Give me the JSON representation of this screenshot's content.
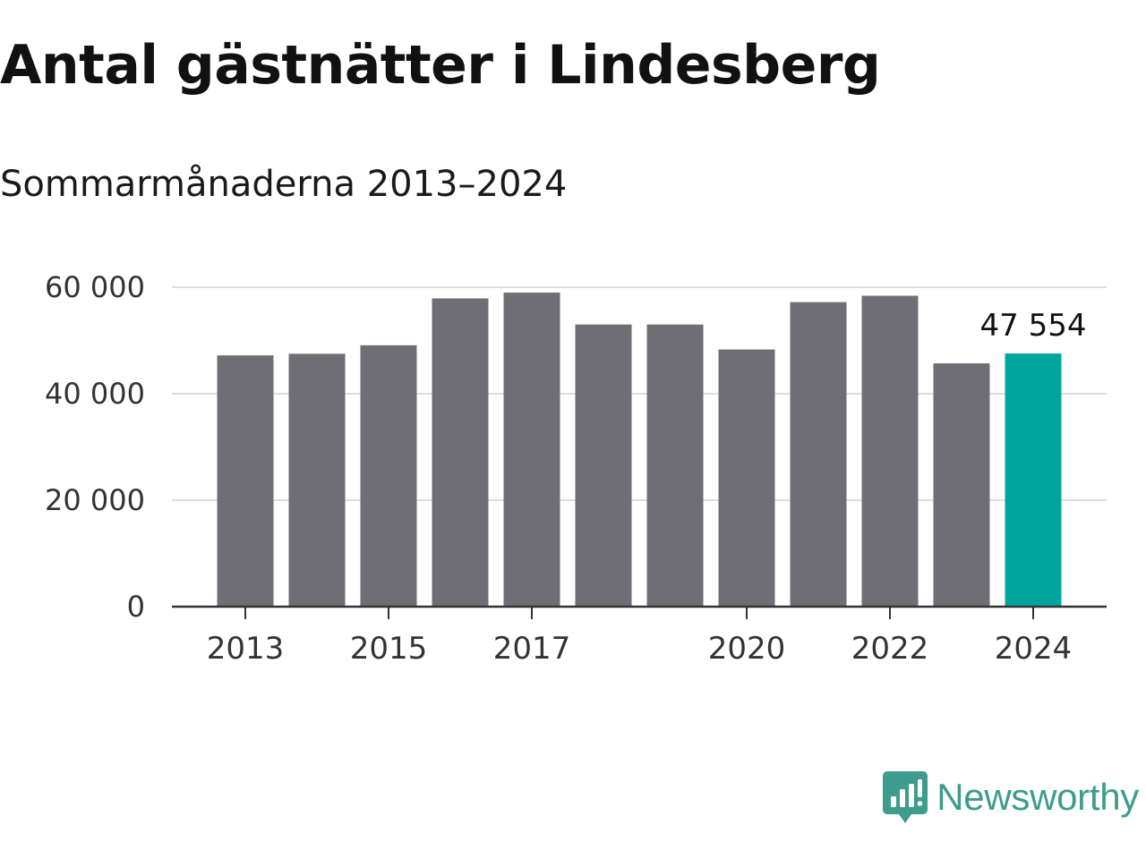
{
  "header": {
    "title": "Antal gästnätter i Lindesberg",
    "subtitle": "Sommarmånaderna 2013–2024"
  },
  "brand": {
    "name": "Newsworthy",
    "logo_icon": "bar-chart-speech-bubble-icon",
    "color": "#3d9c8c"
  },
  "colors": {
    "bar": "#6f6e75",
    "highlight": "#00a69c",
    "grid": "#dddddd",
    "axis": "#333333"
  },
  "chart_data": {
    "type": "bar",
    "categories": [
      "2013",
      "2014",
      "2015",
      "2016",
      "2017",
      "2018",
      "2019",
      "2020",
      "2021",
      "2022",
      "2023",
      "2024"
    ],
    "values": [
      47200,
      47500,
      49100,
      57900,
      59000,
      53000,
      53000,
      48300,
      57200,
      58400,
      45700,
      47554
    ],
    "highlight_index": 11,
    "data_labels": [
      {
        "index": 11,
        "text": "47 554"
      }
    ],
    "x_tick_labels": [
      "2013",
      "2015",
      "2017",
      "2020",
      "2022",
      "2024"
    ],
    "y_ticks": [
      0,
      20000,
      40000,
      60000
    ],
    "y_tick_labels": [
      "0",
      "20 000",
      "40 000",
      "60 000"
    ],
    "ylim": [
      0,
      60000
    ],
    "grid": true,
    "legend": "none",
    "xlabel": "",
    "ylabel": ""
  }
}
